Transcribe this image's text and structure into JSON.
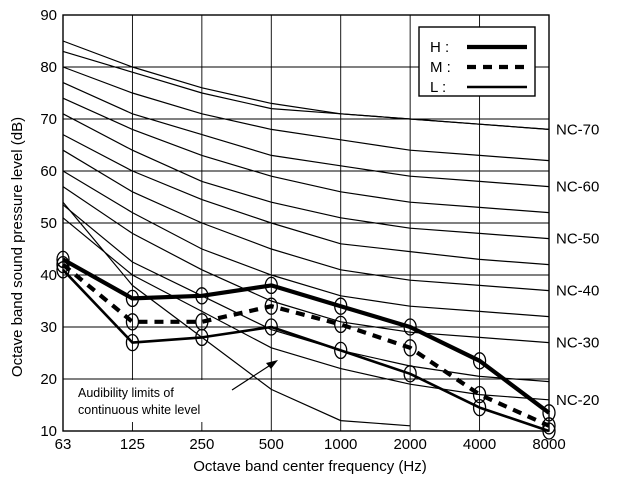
{
  "chart_data": {
    "type": "line",
    "xlabel": "Octave band center frequency (Hz)",
    "ylabel": "Octave band sound pressure level (dB)",
    "x": [
      "63",
      "125",
      "250",
      "500",
      "1000",
      "2000",
      "4000",
      "8000"
    ],
    "ylim": [
      10,
      90
    ],
    "yticks": [
      "10",
      "20",
      "30",
      "40",
      "50",
      "60",
      "70",
      "80",
      "90"
    ],
    "grid": true,
    "legend_position": "top-right",
    "legend": [
      {
        "key": "H",
        "label": "H :",
        "style": "thick"
      },
      {
        "key": "M",
        "label": "M :",
        "style": "dashed"
      },
      {
        "key": "L",
        "label": "L :",
        "style": "thin"
      }
    ],
    "series": [
      {
        "key": "H",
        "values": [
          43,
          35.5,
          36,
          38,
          34,
          30,
          23.5,
          13.5
        ]
      },
      {
        "key": "M",
        "values": [
          42,
          31,
          31,
          34,
          30.5,
          26,
          17,
          11
        ]
      },
      {
        "key": "L",
        "values": [
          41,
          27,
          28,
          30,
          25.5,
          21,
          14.5,
          10
        ]
      }
    ],
    "nc_curves": [
      {
        "label": "NC-20",
        "values": [
          51,
          40,
          33,
          26,
          22,
          19,
          17,
          16
        ]
      },
      {
        "label": "",
        "values": [
          53.5,
          42.5,
          36,
          29.5,
          25.5,
          22.5,
          20.5,
          19.5
        ]
      },
      {
        "label": "NC-30",
        "values": [
          57,
          48,
          41,
          35,
          31,
          29,
          28,
          27
        ]
      },
      {
        "label": "",
        "values": [
          60,
          52,
          45,
          40,
          36,
          34,
          33,
          32
        ]
      },
      {
        "label": "NC-40",
        "values": [
          64,
          56,
          50,
          45,
          41,
          39,
          38,
          37
        ]
      },
      {
        "label": "",
        "values": [
          67,
          60,
          54.5,
          50,
          46,
          44.5,
          43,
          42
        ]
      },
      {
        "label": "NC-50",
        "values": [
          71,
          64,
          58,
          54,
          51,
          49,
          48,
          47
        ]
      },
      {
        "label": "",
        "values": [
          74,
          68,
          63,
          59,
          56,
          54,
          53,
          52
        ]
      },
      {
        "label": "NC-60",
        "values": [
          77,
          71,
          67,
          63,
          61,
          59,
          58,
          57
        ]
      },
      {
        "label": "",
        "values": [
          80,
          75,
          71,
          68,
          66,
          64,
          63,
          62
        ]
      },
      {
        "label": "NC-70",
        "values": [
          83,
          79,
          75,
          72,
          71,
          70,
          69,
          68
        ]
      },
      {
        "label": "",
        "values": [
          85,
          80,
          76,
          73,
          71,
          70,
          69,
          68
        ]
      }
    ],
    "audibility_curve": {
      "values": [
        54,
        38,
        28,
        18,
        12,
        11,
        null,
        null
      ]
    },
    "annotation": {
      "line1": "Audibility limits of",
      "line2": "continuous white level"
    }
  }
}
